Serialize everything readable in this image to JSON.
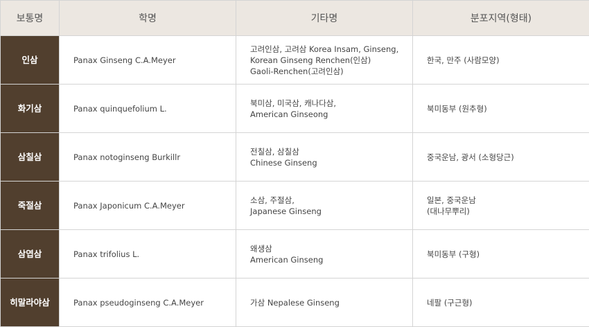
{
  "headers": [
    "보통명",
    "학명",
    "기타명",
    "분포지역(형태)"
  ],
  "colors": {
    "header_bg": "#ece7e1",
    "first_col_bg": "#513f2e"
  },
  "rows": [
    {
      "common": "인삼",
      "scientific": "Panax Ginseng C.A.Meyer",
      "other": [
        "고려인삼, 고려삼 Korea Insam, Ginseng,",
        "Korean Ginseng Renchen(인삼)",
        "Gaoli-Renchen(고려인삼)"
      ],
      "region": [
        "한국, 만주 (사람모양)"
      ]
    },
    {
      "common": "화기삼",
      "scientific": "Panax quinquefolium L.",
      "other": [
        "북미삼, 미국삼, 캐나다삼,",
        "American Ginseong"
      ],
      "region": [
        "북미동부 (원추형)"
      ]
    },
    {
      "common": "삼칠삼",
      "scientific": "Panax notoginseng Burkillr",
      "other": [
        "전칠삼, 삼칠삼",
        "Chinese Ginseng"
      ],
      "region": [
        "중국운남, 광서 (소형당근)"
      ]
    },
    {
      "common": "죽절삼",
      "scientific": "Panax Japonicum C.A.Meyer",
      "other": [
        "소삼, 주절삼,",
        "Japanese Ginseng"
      ],
      "region": [
        "일본, 중국운남",
        "(대나무뿌리)"
      ]
    },
    {
      "common": "삼엽삼",
      "scientific": "Panax trifolius L.",
      "other": [
        "왜생삼",
        "American Ginseng"
      ],
      "region": [
        "북미동부 (구형)"
      ]
    },
    {
      "common": "히말라야삼",
      "scientific": "Panax pseudoginseng C.A.Meyer",
      "other": [
        "가삼 Nepalese Ginseng"
      ],
      "region": [
        "네팔 (구근형)"
      ]
    }
  ]
}
